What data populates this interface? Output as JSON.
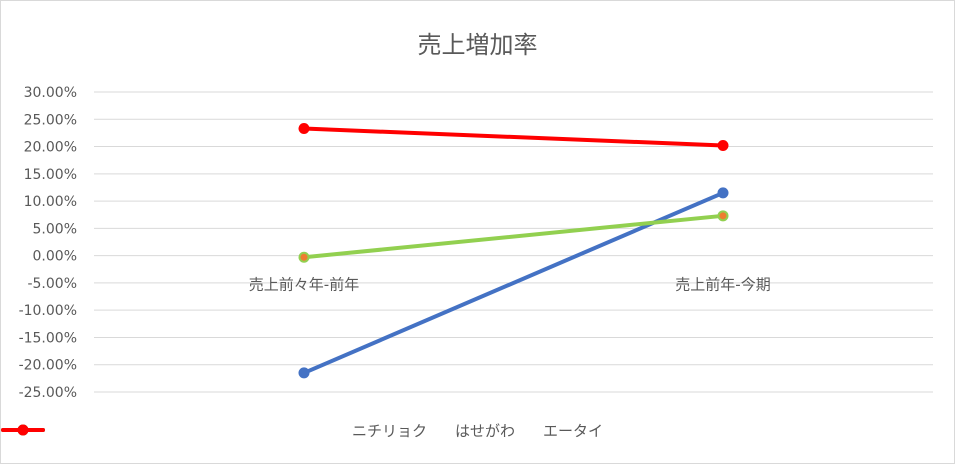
{
  "chart_data": {
    "type": "line",
    "title": "売上増加率",
    "categories": [
      "売上前々年-前年",
      "売上前年-今期"
    ],
    "series": [
      {
        "name": "ニチリョク",
        "values": [
          -21.5,
          11.5
        ],
        "color": "#4472c4",
        "marker_fill": "#4472c4"
      },
      {
        "name": "はせがわ",
        "values": [
          -0.3,
          7.3
        ],
        "color": "#92d050",
        "marker_fill": "#ed7d31"
      },
      {
        "name": "エータイ",
        "values": [
          23.3,
          20.2
        ],
        "color": "#ff0000",
        "marker_fill": "#ff0000"
      }
    ],
    "ylim": [
      -25,
      30
    ],
    "ytick_step": 5,
    "ytick_labels": [
      "30.00%",
      "25.00%",
      "20.00%",
      "15.00%",
      "10.00%",
      "5.00%",
      "0.00%",
      "-5.00%",
      "-10.00%",
      "-15.00%",
      "-20.00%",
      "-25.00%"
    ],
    "xlabel": "",
    "ylabel": "",
    "grid": true,
    "legend_position": "bottom"
  }
}
